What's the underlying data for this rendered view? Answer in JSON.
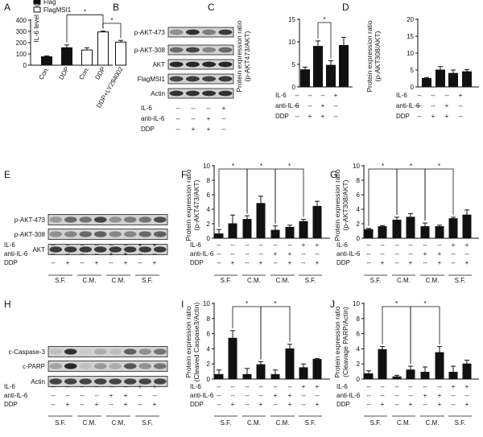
{
  "figure_title": "",
  "chart_data": [
    {
      "panel": "A",
      "type": "bar",
      "ylabel": "IL-6 level (pg/ml)",
      "ylim": [
        0,
        400
      ],
      "yticks": [
        0,
        100,
        200,
        300,
        400
      ],
      "legend": [
        "Flag",
        "FlagMSI1"
      ],
      "categories": [
        "Con.",
        "DDP",
        "Con.",
        "DDP",
        "DDP+LY294002"
      ],
      "values": [
        75,
        155,
        135,
        295,
        205
      ],
      "errors": [
        8,
        25,
        20,
        8,
        15
      ],
      "colors": [
        "#111111",
        "#111111",
        "#ffffff",
        "#ffffff",
        "#ffffff"
      ],
      "significance": [
        {
          "from": 1,
          "to": 3,
          "label": "*"
        },
        {
          "from": 3,
          "to": 4,
          "label": "*"
        }
      ]
    },
    {
      "panel": "C",
      "type": "bar",
      "ylabel": "Protein expression ratio (p-AKT473/AKT)",
      "ylim": [
        0,
        15
      ],
      "yticks": [
        0,
        5,
        10,
        15
      ],
      "categories": [
        "1",
        "2",
        "3",
        "4"
      ],
      "values": [
        3.8,
        9.0,
        4.8,
        9.2
      ],
      "errors": [
        0.6,
        1.2,
        1.0,
        1.8
      ],
      "treatments": [
        {
          "label": "IL-6",
          "cells": [
            "--",
            "--",
            "--",
            "+"
          ]
        },
        {
          "label": "anti-IL-6",
          "cells": [
            "--",
            "--",
            "+",
            "--"
          ]
        },
        {
          "label": "DDP",
          "cells": [
            "--",
            "+",
            "+",
            "--"
          ]
        }
      ],
      "significance": [
        {
          "from": 1,
          "to": 2,
          "label": "*"
        }
      ]
    },
    {
      "panel": "D",
      "type": "bar",
      "ylabel": "Protein expression ratio (p-AKT308/AKT)",
      "ylim": [
        0,
        20
      ],
      "yticks": [
        0,
        5,
        10,
        15,
        20
      ],
      "categories": [
        "1",
        "2",
        "3",
        "4"
      ],
      "values": [
        2.5,
        5.0,
        4.0,
        4.5
      ],
      "errors": [
        0.3,
        1.0,
        1.0,
        0.6
      ],
      "treatments": [
        {
          "label": "IL-6",
          "cells": [
            "--",
            "--",
            "--",
            "+"
          ]
        },
        {
          "label": "anti-IL-6",
          "cells": [
            "--",
            "--",
            "+",
            "--"
          ]
        },
        {
          "label": "DDP",
          "cells": [
            "--",
            "+",
            "+",
            "--"
          ]
        }
      ],
      "significance": []
    },
    {
      "panel": "F",
      "type": "bar",
      "ylabel": "Protein expression ratio (p-AKT473/AKT)",
      "ylim": [
        0,
        10
      ],
      "yticks": [
        0,
        2,
        4,
        6,
        8,
        10
      ],
      "categories": [
        "1",
        "2",
        "3",
        "4",
        "5",
        "6",
        "7",
        "8"
      ],
      "values": [
        0.6,
        2.0,
        2.6,
        4.8,
        1.1,
        1.5,
        2.3,
        4.4
      ],
      "errors": [
        0.6,
        1.2,
        0.5,
        1.0,
        0.6,
        0.3,
        0.3,
        0.7
      ],
      "treatments": [
        {
          "label": "IL-6",
          "cells": [
            "--",
            "--",
            "--",
            "--",
            "--",
            "--",
            "+",
            "+"
          ]
        },
        {
          "label": "anti-IL-6",
          "cells": [
            "--",
            "--",
            "--",
            "--",
            "+",
            "+",
            "--",
            "--"
          ]
        },
        {
          "label": "DDP",
          "cells": [
            "--",
            "+",
            "--",
            "+",
            "--",
            "+",
            "--",
            "+"
          ]
        }
      ],
      "groups": [
        "S.F.",
        "C.M.",
        "C.M.",
        "S.F."
      ],
      "significance": [
        {
          "from": 0,
          "to": 2,
          "label": "*"
        },
        {
          "from": 2,
          "to": 4,
          "label": "*"
        },
        {
          "from": 4,
          "to": 6,
          "label": "*"
        }
      ]
    },
    {
      "panel": "G",
      "type": "bar",
      "ylabel": "Protein expression ratio (p-AKT308/AKT)",
      "ylim": [
        0,
        10
      ],
      "yticks": [
        0,
        2,
        4,
        6,
        8,
        10
      ],
      "categories": [
        "1",
        "2",
        "3",
        "4",
        "5",
        "6",
        "7",
        "8"
      ],
      "values": [
        1.2,
        1.6,
        2.5,
        2.9,
        1.6,
        1.6,
        2.7,
        3.2
      ],
      "errors": [
        0.15,
        0.15,
        0.4,
        0.5,
        0.5,
        0.2,
        0.2,
        0.7
      ],
      "treatments": [
        {
          "label": "IL-6",
          "cells": [
            "--",
            "--",
            "--",
            "--",
            "--",
            "--",
            "+",
            "+"
          ]
        },
        {
          "label": "anti-IL-6",
          "cells": [
            "--",
            "--",
            "--",
            "--",
            "+",
            "+",
            "--",
            "--"
          ]
        },
        {
          "label": "DDP",
          "cells": [
            "--",
            "+",
            "--",
            "+",
            "--",
            "+",
            "--",
            "+"
          ]
        }
      ],
      "groups": [
        "S.F.",
        "C.M.",
        "C.M.",
        "S.F."
      ],
      "significance": [
        {
          "from": 0,
          "to": 2,
          "label": "*"
        },
        {
          "from": 2,
          "to": 4,
          "label": "*"
        },
        {
          "from": 4,
          "to": 6,
          "label": "*"
        }
      ]
    },
    {
      "panel": "I",
      "type": "bar",
      "ylabel": "Protein expression ratio (Cleaved Caspase3/Actin)",
      "ylim": [
        0,
        10
      ],
      "yticks": [
        0,
        2,
        4,
        6,
        8,
        10
      ],
      "categories": [
        "1",
        "2",
        "3",
        "4",
        "5",
        "6",
        "7",
        "8"
      ],
      "values": [
        0.6,
        5.4,
        0.6,
        1.9,
        0.6,
        4.0,
        1.5,
        2.6
      ],
      "errors": [
        0.6,
        1.0,
        0.8,
        0.4,
        0.6,
        0.6,
        0.5,
        0.1
      ],
      "treatments": [
        {
          "label": "IL-6",
          "cells": [
            "--",
            "--",
            "--",
            "--",
            "--",
            "--",
            "+",
            "+"
          ]
        },
        {
          "label": "anti-IL-6",
          "cells": [
            "--",
            "--",
            "--",
            "--",
            "+",
            "+",
            "--",
            "--"
          ]
        },
        {
          "label": "DDP",
          "cells": [
            "--",
            "+",
            "--",
            "+",
            "--",
            "+",
            "--",
            "+"
          ]
        }
      ],
      "groups": [
        "S.F.",
        "C.M.",
        "C.M.",
        "S.F."
      ],
      "significance": [
        {
          "from": 1,
          "to": 3,
          "label": "*"
        },
        {
          "from": 3,
          "to": 5,
          "label": "*"
        }
      ]
    },
    {
      "panel": "J",
      "type": "bar",
      "ylabel": "Protein expression ratio (Cleavage PARP/Actin)",
      "ylim": [
        0,
        10
      ],
      "yticks": [
        0,
        2,
        4,
        6,
        8,
        10
      ],
      "categories": [
        "1",
        "2",
        "3",
        "4",
        "5",
        "6",
        "7",
        "8"
      ],
      "values": [
        0.7,
        3.9,
        0.3,
        1.2,
        0.9,
        3.5,
        0.9,
        2.0
      ],
      "errors": [
        0.4,
        0.4,
        0.2,
        0.5,
        0.7,
        0.8,
        0.8,
        0.5
      ],
      "treatments": [
        {
          "label": "IL-6",
          "cells": [
            "--",
            "--",
            "--",
            "--",
            "--",
            "--",
            "+",
            "+"
          ]
        },
        {
          "label": "anti-IL-6",
          "cells": [
            "--",
            "--",
            "--",
            "--",
            "+",
            "+",
            "--",
            "--"
          ]
        },
        {
          "label": "DDP",
          "cells": [
            "--",
            "+",
            "--",
            "+",
            "--",
            "+",
            "--",
            "+"
          ]
        }
      ],
      "groups": [
        "S.F.",
        "C.M.",
        "C.M.",
        "S.F."
      ],
      "significance": [
        {
          "from": 1,
          "to": 3,
          "label": "*"
        },
        {
          "from": 3,
          "to": 5,
          "label": "*"
        }
      ]
    }
  ],
  "blots": [
    {
      "panel": "B",
      "rows": [
        "p-AKT-473",
        "p-AKT-308",
        "AKT",
        "FlagMSI1",
        "Actin"
      ],
      "lanes": 4,
      "intensities": [
        [
          0.35,
          0.85,
          0.45,
          0.8
        ],
        [
          0.55,
          0.75,
          0.4,
          0.55
        ],
        [
          0.9,
          0.9,
          0.9,
          0.9
        ],
        [
          0.75,
          0.8,
          0.75,
          0.8
        ],
        [
          0.85,
          0.85,
          0.85,
          0.85
        ]
      ],
      "treatments": [
        {
          "label": "IL-6",
          "cells": [
            "--",
            "--",
            "--",
            "+"
          ]
        },
        {
          "label": "anti-IL-6",
          "cells": [
            "--",
            "--",
            "+",
            "--"
          ]
        },
        {
          "label": "DDP",
          "cells": [
            "--",
            "+",
            "+",
            "--"
          ]
        }
      ]
    },
    {
      "panel": "E",
      "rows": [
        "p-AKT-473",
        "p-AKT-308",
        "AKT"
      ],
      "lanes": 8,
      "intensities": [
        [
          0.3,
          0.55,
          0.5,
          0.75,
          0.35,
          0.45,
          0.5,
          0.7
        ],
        [
          0.35,
          0.4,
          0.55,
          0.6,
          0.4,
          0.4,
          0.55,
          0.6
        ],
        [
          0.8,
          0.8,
          0.8,
          0.8,
          0.8,
          0.8,
          0.8,
          0.8
        ]
      ],
      "treatments": [
        {
          "label": "IL-6",
          "cells": [
            "--",
            "--",
            "--",
            "--",
            "--",
            "--",
            "+",
            "+"
          ]
        },
        {
          "label": "anti-IL-6",
          "cells": [
            "--",
            "--",
            "--",
            "--",
            "+",
            "+",
            "--",
            "--"
          ]
        },
        {
          "label": "DDP",
          "cells": [
            "--",
            "+",
            "--",
            "+",
            "--",
            "+",
            "--",
            "+"
          ]
        }
      ],
      "groups": [
        "S.F.",
        "C.M.",
        "C.M.",
        "S.F."
      ]
    },
    {
      "panel": "H",
      "rows": [
        "c-Caspase-3",
        "c-PARP",
        "Actin"
      ],
      "lanes": 8,
      "intensities": [
        [
          0.1,
          0.85,
          0.05,
          0.2,
          0.1,
          0.6,
          0.35,
          0.5
        ],
        [
          0.25,
          0.9,
          0.1,
          0.3,
          0.2,
          0.65,
          0.35,
          0.5
        ],
        [
          0.75,
          0.75,
          0.75,
          0.75,
          0.75,
          0.75,
          0.75,
          0.75
        ]
      ],
      "treatments": [
        {
          "label": "IL-6",
          "cells": [
            "--",
            "--",
            "--",
            "--",
            "--",
            "--",
            "+",
            "+"
          ]
        },
        {
          "label": "anti-IL-6",
          "cells": [
            "--",
            "--",
            "--",
            "--",
            "+",
            "+",
            "--",
            "--"
          ]
        },
        {
          "label": "DDP",
          "cells": [
            "--",
            "+",
            "--",
            "+",
            "--",
            "+",
            "--",
            "+"
          ]
        }
      ],
      "groups": [
        "S.F.",
        "C.M.",
        "C.M.",
        "S.F."
      ]
    }
  ]
}
